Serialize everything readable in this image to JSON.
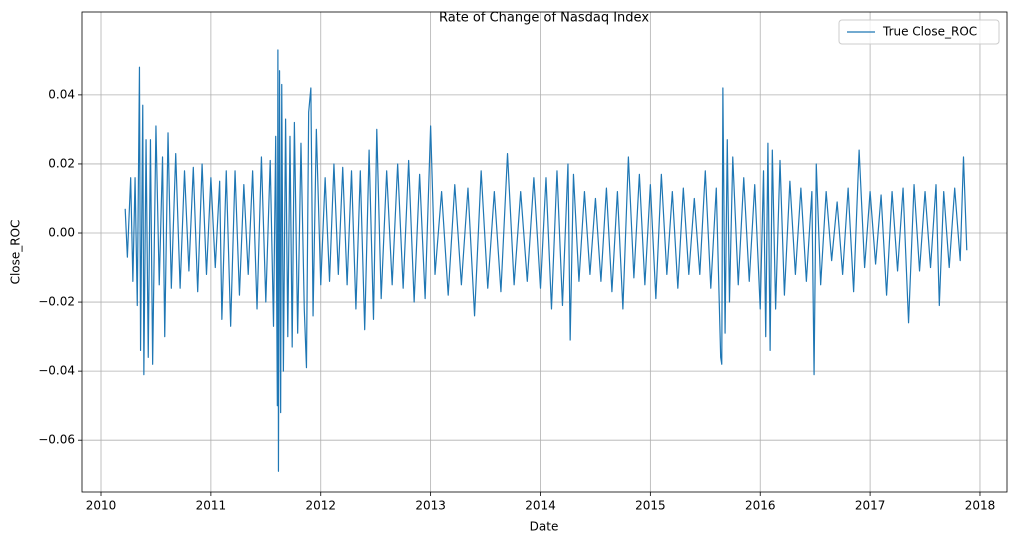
{
  "chart_data": {
    "type": "line",
    "title": "Rate of Change of Nasdaq Index",
    "x_label": "Date",
    "y_label": "Close_ROC",
    "x": [
      2010.22,
      2010.24,
      2010.27,
      2010.29,
      2010.31,
      2010.33,
      2010.35,
      2010.36,
      2010.38,
      2010.39,
      2010.41,
      2010.43,
      2010.45,
      2010.47,
      2010.5,
      2010.53,
      2010.56,
      2010.58,
      2010.61,
      2010.64,
      2010.68,
      2010.72,
      2010.76,
      2010.8,
      2010.84,
      2010.88,
      2010.92,
      2010.96,
      2011.0,
      2011.04,
      2011.08,
      2011.1,
      2011.14,
      2011.18,
      2011.22,
      2011.26,
      2011.3,
      2011.34,
      2011.38,
      2011.42,
      2011.46,
      2011.5,
      2011.54,
      2011.57,
      2011.59,
      2011.605,
      2011.61,
      2011.615,
      2011.625,
      2011.635,
      2011.645,
      2011.66,
      2011.68,
      2011.7,
      2011.72,
      2011.74,
      2011.76,
      2011.79,
      2011.82,
      2011.85,
      2011.87,
      2011.89,
      2011.91,
      2011.93,
      2011.96,
      2012.0,
      2012.04,
      2012.08,
      2012.12,
      2012.16,
      2012.2,
      2012.24,
      2012.28,
      2012.32,
      2012.36,
      2012.4,
      2012.44,
      2012.48,
      2012.51,
      2012.55,
      2012.6,
      2012.65,
      2012.7,
      2012.75,
      2012.8,
      2012.85,
      2012.9,
      2012.95,
      2013.0,
      2013.04,
      2013.1,
      2013.16,
      2013.22,
      2013.28,
      2013.34,
      2013.4,
      2013.46,
      2013.52,
      2013.58,
      2013.64,
      2013.7,
      2013.76,
      2013.82,
      2013.88,
      2013.94,
      2014.0,
      2014.05,
      2014.1,
      2014.15,
      2014.2,
      2014.25,
      2014.27,
      2014.3,
      2014.35,
      2014.4,
      2014.45,
      2014.5,
      2014.55,
      2014.6,
      2014.65,
      2014.7,
      2014.75,
      2014.8,
      2014.85,
      2014.9,
      2014.95,
      2015.0,
      2015.05,
      2015.1,
      2015.15,
      2015.2,
      2015.25,
      2015.3,
      2015.35,
      2015.4,
      2015.45,
      2015.5,
      2015.55,
      2015.6,
      2015.64,
      2015.65,
      2015.66,
      2015.68,
      2015.7,
      2015.72,
      2015.75,
      2015.8,
      2015.85,
      2015.9,
      2015.95,
      2016.0,
      2016.03,
      2016.05,
      2016.07,
      2016.09,
      2016.11,
      2016.14,
      2016.18,
      2016.22,
      2016.27,
      2016.32,
      2016.37,
      2016.42,
      2016.47,
      2016.49,
      2016.51,
      2016.55,
      2016.6,
      2016.65,
      2016.7,
      2016.75,
      2016.8,
      2016.85,
      2016.9,
      2016.95,
      2017.0,
      2017.05,
      2017.1,
      2017.15,
      2017.2,
      2017.25,
      2017.3,
      2017.35,
      2017.4,
      2017.45,
      2017.5,
      2017.55,
      2017.6,
      2017.63,
      2017.67,
      2017.72,
      2017.77,
      2017.82,
      2017.85,
      2017.88
    ],
    "series": [
      {
        "name": "True Close_ROC",
        "color": "#1f77b4",
        "values": [
          0.007,
          -0.007,
          0.016,
          -0.014,
          0.016,
          -0.021,
          0.048,
          -0.034,
          0.037,
          -0.041,
          0.027,
          -0.036,
          0.027,
          -0.038,
          0.031,
          -0.015,
          0.022,
          -0.03,
          0.029,
          -0.016,
          0.023,
          -0.016,
          0.018,
          -0.011,
          0.019,
          -0.017,
          0.02,
          -0.012,
          0.016,
          -0.01,
          0.015,
          -0.025,
          0.018,
          -0.027,
          0.018,
          -0.018,
          0.014,
          -0.012,
          0.018,
          -0.022,
          0.022,
          -0.02,
          0.021,
          -0.027,
          0.028,
          -0.05,
          0.053,
          -0.069,
          0.047,
          -0.052,
          0.043,
          -0.04,
          0.033,
          -0.03,
          0.028,
          -0.033,
          0.032,
          -0.029,
          0.026,
          -0.022,
          -0.039,
          0.035,
          0.042,
          -0.024,
          0.03,
          -0.015,
          0.016,
          -0.014,
          0.02,
          -0.012,
          0.019,
          -0.015,
          0.018,
          -0.022,
          0.018,
          -0.028,
          0.024,
          -0.025,
          0.03,
          -0.019,
          0.018,
          -0.015,
          0.02,
          -0.016,
          0.021,
          -0.02,
          0.017,
          -0.019,
          0.031,
          -0.012,
          0.012,
          -0.018,
          0.014,
          -0.015,
          0.013,
          -0.024,
          0.018,
          -0.016,
          0.012,
          -0.017,
          0.023,
          -0.015,
          0.012,
          -0.014,
          0.016,
          -0.016,
          0.016,
          -0.022,
          0.018,
          -0.021,
          0.02,
          -0.031,
          0.017,
          -0.014,
          0.012,
          -0.012,
          0.01,
          -0.014,
          0.013,
          -0.017,
          0.012,
          -0.022,
          0.022,
          -0.013,
          0.017,
          -0.015,
          0.014,
          -0.019,
          0.017,
          -0.012,
          0.012,
          -0.016,
          0.013,
          -0.012,
          0.01,
          -0.012,
          0.018,
          -0.016,
          0.013,
          -0.036,
          -0.038,
          0.042,
          -0.029,
          0.027,
          -0.02,
          0.022,
          -0.015,
          0.016,
          -0.014,
          0.014,
          -0.022,
          0.018,
          -0.03,
          0.026,
          -0.034,
          0.024,
          -0.022,
          0.021,
          -0.018,
          0.015,
          -0.012,
          0.013,
          -0.014,
          0.012,
          -0.041,
          0.02,
          -0.015,
          0.012,
          -0.008,
          0.009,
          -0.012,
          0.013,
          -0.017,
          0.024,
          -0.01,
          0.012,
          -0.009,
          0.011,
          -0.018,
          0.012,
          -0.011,
          0.013,
          -0.026,
          0.014,
          -0.011,
          0.012,
          -0.01,
          0.014,
          -0.021,
          0.012,
          -0.01,
          0.013,
          -0.008,
          0.022,
          -0.005
        ]
      }
    ],
    "xlim": [
      2009.827,
      2018.246
    ],
    "ylim": [
      -0.075,
      0.064
    ],
    "xticks": [
      2010,
      2011,
      2012,
      2013,
      2014,
      2015,
      2016,
      2017,
      2018
    ],
    "yticks": [
      {
        "value": -0.06,
        "label": "−0.06"
      },
      {
        "value": -0.04,
        "label": "−0.04"
      },
      {
        "value": -0.02,
        "label": "−0.02"
      },
      {
        "value": 0,
        "label": "0.00"
      },
      {
        "value": 0.02,
        "label": "0.02"
      },
      {
        "value": 0.04,
        "label": "0.04"
      }
    ],
    "grid": true,
    "legend": "upper right"
  }
}
